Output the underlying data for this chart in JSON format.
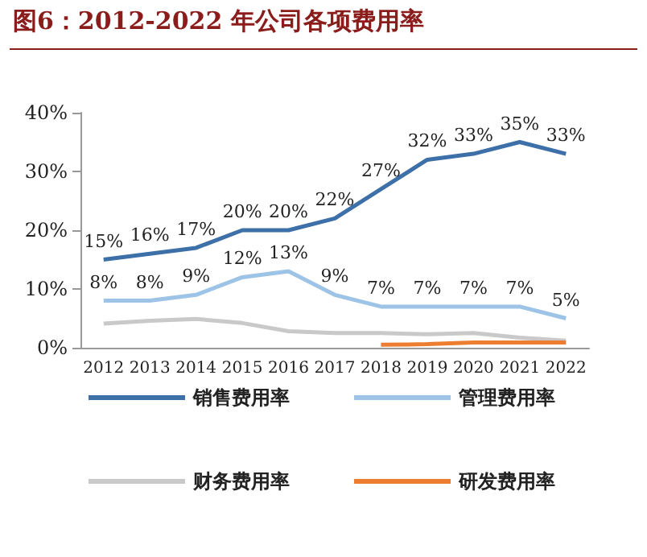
{
  "chart_data": {
    "type": "line",
    "title": "图6：2012-2022 年公司各项费用率",
    "categories": [
      "2012",
      "2013",
      "2014",
      "2015",
      "2016",
      "2017",
      "2018",
      "2019",
      "2020",
      "2021",
      "2022"
    ],
    "series": [
      {
        "name": "销售费用率",
        "color": "#3d6fa8",
        "values": [
          15,
          16,
          17,
          20,
          20,
          22,
          27,
          32,
          33,
          35,
          33
        ],
        "value_labels": [
          "15%",
          "16%",
          "17%",
          "20%",
          "20%",
          "22%",
          "27%",
          "32%",
          "33%",
          "35%",
          "33%"
        ]
      },
      {
        "name": "管理费用率",
        "color": "#9dc3e6",
        "values": [
          8,
          8,
          9,
          12,
          13,
          9,
          7,
          7,
          7,
          7,
          5
        ],
        "value_labels": [
          "8%",
          "8%",
          "9%",
          "12%",
          "13%",
          "9%",
          "7%",
          "7%",
          "7%",
          "7%",
          "5%"
        ]
      },
      {
        "name": "财务费用率",
        "color": "#c9c9c9",
        "values": [
          4.1,
          4.6,
          4.9,
          4.2,
          2.8,
          2.5,
          2.5,
          2.3,
          2.5,
          1.7,
          1.2
        ]
      },
      {
        "name": "研发费用率",
        "color": "#ed7d31",
        "values": [
          null,
          null,
          null,
          null,
          null,
          null,
          0.5,
          0.6,
          0.9,
          0.9,
          0.9
        ]
      }
    ],
    "ylim": [
      0,
      40
    ],
    "yticks": [
      {
        "value": 0,
        "label": "0%"
      },
      {
        "value": 10,
        "label": "10%"
      },
      {
        "value": 20,
        "label": "20%"
      },
      {
        "value": 30,
        "label": "30%"
      },
      {
        "value": 40,
        "label": "40%"
      }
    ],
    "grid": false,
    "legend": "bottom",
    "marker": "none",
    "line_style": "solid"
  }
}
